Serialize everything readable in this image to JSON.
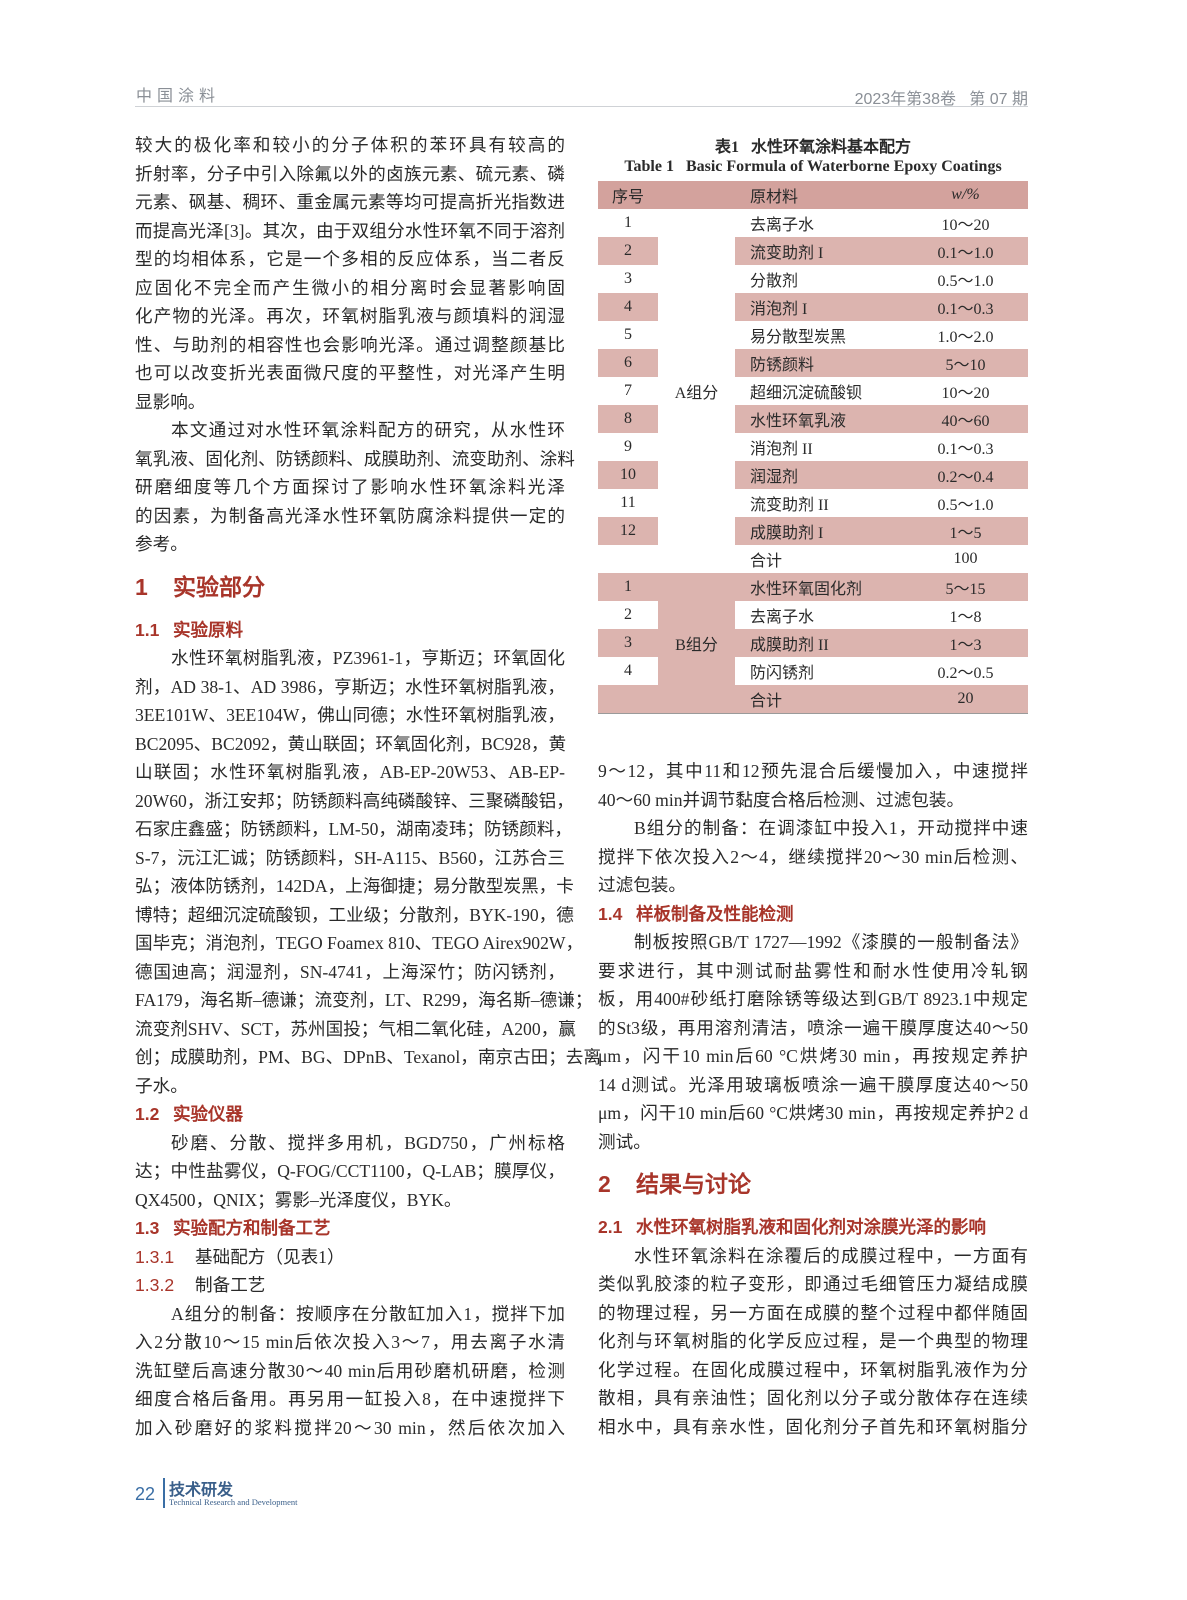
{
  "header": {
    "journal": "中国涂料",
    "issue": "2023年第38卷   第 07 期"
  },
  "left_column": [
    {
      "type": "p",
      "indent": false,
      "lines": [
        "较大的极化率和较小的分子体积的苯环具有较高的",
        "折射率，分子中引入除氟以外的卤族元素、硫元素、磷",
        "元素、砜基、稠环、重金属元素等均可提高折光指数进",
        "而提高光泽[3]。其次，由于双组分水性环氧不同于溶剂",
        "型的均相体系，它是一个多相的反应体系，当二者反",
        "应固化不完全而产生微小的相分离时会显著影响固",
        "化产物的光泽。再次，环氧树脂乳液与颜填料的润湿",
        "性、与助剂的相容性也会影响光泽。通过调整颜基比",
        "也可以改变折光表面微尺度的平整性，对光泽产生明",
        "显影响。"
      ]
    },
    {
      "type": "p",
      "indent": true,
      "lines": [
        "本文通过对水性环氧涂料配方的研究，从水性环",
        "氧乳液、固化剂、防锈颜料、成膜助剂、流变助剂、涂料",
        "研磨细度等几个方面探讨了影响水性环氧涂料光泽",
        "的因素，为制备高光泽水性环氧防腐涂料提供一定的",
        "参考。"
      ]
    },
    {
      "type": "h1",
      "num": "1",
      "text": "实验部分"
    },
    {
      "type": "h2",
      "num": "1.1",
      "text": "实验原料"
    },
    {
      "type": "p",
      "indent": true,
      "lines": [
        "水性环氧树脂乳液，PZ3961-1，亨斯迈；环氧固化",
        "剂，AD 38-1、AD 3986，亨斯迈；水性环氧树脂乳液，",
        "3EE101W、3EE104W，佛山同德；水性环氧树脂乳液，",
        "BC2095、BC2092，黄山联固；环氧固化剂，BC928，黄",
        "山联固；水性环氧树脂乳液，AB-EP-20W53、AB-EP-",
        "20W60，浙江安邦；防锈颜料高纯磷酸锌、三聚磷酸铝，",
        "石家庄鑫盛；防锈颜料，LM-50，湖南凌玮；防锈颜料，",
        "S-7，沅江汇诚；防锈颜料，SH-A115、B560，江苏合三",
        "弘；液体防锈剂，142DA，上海御捷；易分散型炭黑，卡",
        "博特；超细沉淀硫酸钡，工业级；分散剂，BYK-190，德",
        "国毕克；消泡剂，TEGO Foamex 810、TEGO Airex902W，",
        "德国迪高；润湿剂，SN-4741，上海深竹；防闪锈剂，",
        "FA179，海名斯–德谦；流变剂，LT、R299，海名斯–德谦；",
        "流变剂SHV、SCT，苏州国投；气相二氧化硅，A200，赢",
        "创；成膜助剂，PM、BG、DPnB、Texanol，南京古田；去离",
        "子水。"
      ]
    },
    {
      "type": "h2",
      "num": "1.2",
      "text": "实验仪器"
    },
    {
      "type": "p",
      "indent": true,
      "lines": [
        "砂磨、分散、搅拌多用机，BGD750，广州标格",
        "达；中性盐雾仪，Q-FOG/CCT1100，Q-LAB；膜厚仪，",
        "QX4500，QNIX；雾影–光泽度仪，BYK。"
      ]
    },
    {
      "type": "h2",
      "num": "1.3",
      "text": "实验配方和制备工艺"
    },
    {
      "type": "h3",
      "num": "1.3.1",
      "text": "基础配方（见表1）"
    },
    {
      "type": "h3",
      "num": "1.3.2",
      "text": "制备工艺"
    },
    {
      "type": "p",
      "indent": true,
      "cont": true,
      "lines": [
        "A组分的制备：按顺序在分散缸加入1，搅拌下加",
        "入2分散10～15 min后依次投入3～7，用去离子水清",
        "洗缸壁后高速分散30～40 min后用砂磨机研磨，检测",
        "细度合格后备用。再另用一缸投入8，在中速搅拌下",
        "加入砂磨好的浆料搅拌20～30 min，然后依次加入"
      ]
    }
  ],
  "table": {
    "caption_cn": "表1   水性环氧涂料基本配方",
    "caption_en": "Table 1   Basic Formula of Waterborne Epoxy Coatings",
    "headers": [
      "序号",
      "原材料",
      "w/%"
    ],
    "groups": [
      {
        "label": "A组分",
        "rows": [
          {
            "seq": "1",
            "material": "去离子水",
            "value": "10～20",
            "shaded": false
          },
          {
            "seq": "2",
            "material": "流变助剂 I",
            "value": "0.1～1.0",
            "shaded": true
          },
          {
            "seq": "3",
            "material": "分散剂",
            "value": "0.5～1.0",
            "shaded": false
          },
          {
            "seq": "4",
            "material": "消泡剂 I",
            "value": "0.1～0.3",
            "shaded": true
          },
          {
            "seq": "5",
            "material": "易分散型炭黑",
            "value": "1.0～2.0",
            "shaded": false
          },
          {
            "seq": "6",
            "material": "防锈颜料",
            "value": "5～10",
            "shaded": true
          },
          {
            "seq": "7",
            "material": "超细沉淀硫酸钡",
            "value": "10～20",
            "shaded": false
          },
          {
            "seq": "8",
            "material": "水性环氧乳液",
            "value": "40～60",
            "shaded": true
          },
          {
            "seq": "9",
            "material": "消泡剂 II",
            "value": "0.1～0.3",
            "shaded": false
          },
          {
            "seq": "10",
            "material": "润湿剂",
            "value": "0.2～0.4",
            "shaded": true
          },
          {
            "seq": "11",
            "material": "流变助剂 II",
            "value": "0.5～1.0",
            "shaded": false
          },
          {
            "seq": "12",
            "material": "成膜助剂 I",
            "value": "1～5",
            "shaded": true
          }
        ],
        "total": {
          "material": "合计",
          "value": "100",
          "shaded": false
        },
        "group_shaded": false
      },
      {
        "label": "B组分",
        "rows": [
          {
            "seq": "1",
            "material": "水性环氧固化剂",
            "value": "5～15",
            "shaded": true
          },
          {
            "seq": "2",
            "material": "去离子水",
            "value": "1～8",
            "shaded": false
          },
          {
            "seq": "3",
            "material": "成膜助剂 II",
            "value": "1～3",
            "shaded": true
          },
          {
            "seq": "4",
            "material": "防闪锈剂",
            "value": "0.2～0.5",
            "shaded": false
          }
        ],
        "total": {
          "material": "合计",
          "value": "20",
          "shaded": true
        },
        "group_shaded": true
      }
    ]
  },
  "right_column": [
    {
      "type": "p",
      "indent": false,
      "lines": [
        "9～12，其中11和12预先混合后缓慢加入，中速搅拌",
        "40～60 min并调节黏度合格后检测、过滤包装。"
      ]
    },
    {
      "type": "p",
      "indent": true,
      "lines": [
        "B组分的制备：在调漆缸中投入1，开动搅拌中速",
        "搅拌下依次投入2～4，继续搅拌20～30 min后检测、",
        "过滤包装。"
      ]
    },
    {
      "type": "h2",
      "num": "1.4",
      "text": "样板制备及性能检测"
    },
    {
      "type": "p",
      "indent": true,
      "lines": [
        "制板按照GB/T 1727—1992《漆膜的一般制备法》",
        "要求进行，其中测试耐盐雾性和耐水性使用冷轧钢",
        "板，用400#砂纸打磨除锈等级达到GB/T 8923.1中规定",
        "的St3级，再用溶剂清洁，喷涂一遍干膜厚度达40～50",
        "μm，闪干10 min后60 °C烘烤30 min，再按规定养护",
        "14 d测试。光泽用玻璃板喷涂一遍干膜厚度达40～50",
        "μm，闪干10 min后60 °C烘烤30 min，再按规定养护2 d",
        "测试。"
      ]
    },
    {
      "type": "h1",
      "num": "2",
      "text": "结果与讨论"
    },
    {
      "type": "h2",
      "num": "2.1",
      "text": "水性环氧树脂乳液和固化剂对涂膜光泽的影响"
    },
    {
      "type": "p",
      "indent": true,
      "cont": true,
      "lines": [
        "水性环氧涂料在涂覆后的成膜过程中，一方面有",
        "类似乳胶漆的粒子变形，即通过毛细管压力凝结成膜",
        "的物理过程，另一方面在成膜的整个过程中都伴随固",
        "化剂与环氧树脂的化学反应过程，是一个典型的物理",
        "化学过程。在固化成膜过程中，环氧树脂乳液作为分",
        "散相，具有亲油性；固化剂以分子或分散体存在连续",
        "相水中，具有亲水性，固化剂分子首先和环氧树脂分"
      ]
    }
  ],
  "footer": {
    "page": "22",
    "section_cn": "技术研发",
    "section_en": "Technical Research and Development"
  },
  "colors": {
    "heading": "#a8352a",
    "table_shade": "#dcb4af",
    "table_header": "#d3a29d",
    "footer": "#3a6ea5"
  }
}
